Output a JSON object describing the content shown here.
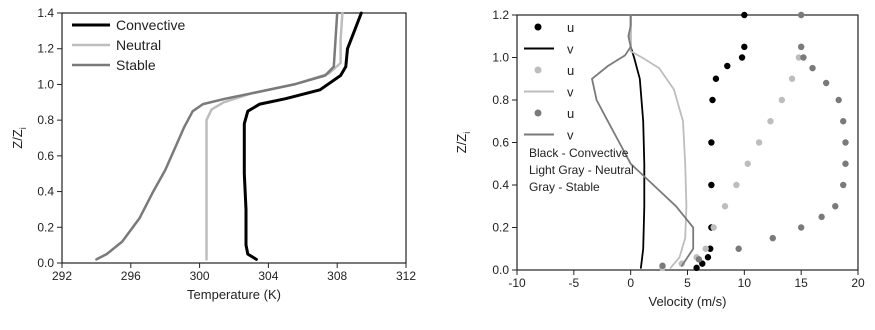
{
  "chart_data": [
    {
      "type": "line",
      "title": "",
      "xlabel": "Temperature (K)",
      "ylabel": "Z/Z",
      "ylabel_sub": "i",
      "xlim": [
        292,
        312
      ],
      "ylim": [
        0.0,
        1.4
      ],
      "xticks": [
        "292",
        "296",
        "300",
        "304",
        "308",
        "312"
      ],
      "yticks": [
        "0.0",
        "0.2",
        "0.4",
        "0.6",
        "0.8",
        "1.0",
        "1.2",
        "1.4"
      ],
      "grid": false,
      "legend_position": "top-left",
      "series": [
        {
          "name": "Convective",
          "color": "#000000",
          "width": 3,
          "points": [
            [
              303.3,
              0.02
            ],
            [
              302.8,
              0.05
            ],
            [
              302.7,
              0.1
            ],
            [
              302.7,
              0.3
            ],
            [
              302.6,
              0.5
            ],
            [
              302.6,
              0.7
            ],
            [
              302.6,
              0.78
            ],
            [
              302.8,
              0.85
            ],
            [
              303.5,
              0.89
            ],
            [
              305.0,
              0.92
            ],
            [
              307.0,
              0.97
            ],
            [
              308.2,
              1.05
            ],
            [
              308.5,
              1.1
            ],
            [
              308.6,
              1.2
            ],
            [
              309.0,
              1.3
            ],
            [
              309.4,
              1.4
            ]
          ]
        },
        {
          "name": "Neutral",
          "color": "#bdbdbd",
          "width": 2.5,
          "points": [
            [
              300.4,
              0.02
            ],
            [
              300.4,
              0.2
            ],
            [
              300.4,
              0.4
            ],
            [
              300.4,
              0.6
            ],
            [
              300.4,
              0.8
            ],
            [
              300.7,
              0.86
            ],
            [
              301.4,
              0.9
            ],
            [
              303.0,
              0.95
            ],
            [
              305.5,
              1.0
            ],
            [
              307.5,
              1.06
            ],
            [
              308.2,
              1.12
            ],
            [
              308.2,
              1.25
            ],
            [
              308.3,
              1.4
            ]
          ]
        },
        {
          "name": "Stable",
          "color": "#7a7a7a",
          "width": 2.5,
          "points": [
            [
              294.0,
              0.02
            ],
            [
              294.6,
              0.05
            ],
            [
              295.5,
              0.12
            ],
            [
              296.5,
              0.25
            ],
            [
              297.3,
              0.4
            ],
            [
              298.0,
              0.52
            ],
            [
              298.6,
              0.65
            ],
            [
              299.1,
              0.76
            ],
            [
              299.6,
              0.85
            ],
            [
              300.2,
              0.89
            ],
            [
              301.5,
              0.92
            ],
            [
              303.5,
              0.96
            ],
            [
              305.5,
              1.0
            ],
            [
              307.3,
              1.05
            ],
            [
              307.8,
              1.1
            ],
            [
              307.9,
              1.25
            ],
            [
              308.0,
              1.4
            ]
          ]
        }
      ]
    },
    {
      "type": "line",
      "title": "",
      "xlabel": "Velocity (m/s)",
      "ylabel": "Z/Z",
      "ylabel_sub": "i",
      "xlim": [
        -10,
        20
      ],
      "ylim": [
        0.0,
        1.2
      ],
      "xticks": [
        "-10",
        "-5",
        "0",
        "5",
        "10",
        "15",
        "20"
      ],
      "yticks": [
        "0.0",
        "0.2",
        "0.4",
        "0.6",
        "0.8",
        "1.0",
        "1.2"
      ],
      "grid": false,
      "legend_position": "top-left",
      "legend": [
        {
          "label": "u",
          "kind": "dot",
          "color": "#000000"
        },
        {
          "label": "v",
          "kind": "line",
          "color": "#000000"
        },
        {
          "label": "u",
          "kind": "dot",
          "color": "#bdbdbd"
        },
        {
          "label": "v",
          "kind": "line",
          "color": "#bdbdbd"
        },
        {
          "label": "u",
          "kind": "dot",
          "color": "#7a7a7a"
        },
        {
          "label": "v",
          "kind": "line",
          "color": "#7a7a7a"
        }
      ],
      "annotation": [
        "Black - Convective",
        "Light Gray - Neutral",
        "Gray - Stable"
      ],
      "series": [
        {
          "name": "u",
          "kind": "dot",
          "color": "#000000",
          "points": [
            [
              5.8,
              0.01
            ],
            [
              6.3,
              0.03
            ],
            [
              6.8,
              0.06
            ],
            [
              7.0,
              0.1
            ],
            [
              7.1,
              0.2
            ],
            [
              7.1,
              0.4
            ],
            [
              7.1,
              0.6
            ],
            [
              7.2,
              0.8
            ],
            [
              7.5,
              0.9
            ],
            [
              8.5,
              0.96
            ],
            [
              9.8,
              1.0
            ],
            [
              10.0,
              1.05
            ],
            [
              10.0,
              1.2
            ]
          ]
        },
        {
          "name": "v",
          "kind": "line",
          "color": "#000000",
          "points": [
            [
              0.9,
              0.01
            ],
            [
              1.1,
              0.1
            ],
            [
              1.2,
              0.3
            ],
            [
              1.2,
              0.5
            ],
            [
              1.1,
              0.7
            ],
            [
              0.8,
              0.9
            ],
            [
              0.3,
              1.0
            ],
            [
              0.0,
              1.05
            ],
            [
              0.0,
              1.2
            ]
          ]
        },
        {
          "name": "u",
          "kind": "dot",
          "color": "#bdbdbd",
          "points": [
            [
              2.8,
              0.01
            ],
            [
              4.5,
              0.03
            ],
            [
              5.8,
              0.06
            ],
            [
              6.6,
              0.1
            ],
            [
              7.3,
              0.2
            ],
            [
              8.3,
              0.3
            ],
            [
              9.3,
              0.4
            ],
            [
              10.3,
              0.5
            ],
            [
              11.3,
              0.6
            ],
            [
              12.3,
              0.7
            ],
            [
              13.3,
              0.8
            ],
            [
              14.2,
              0.9
            ],
            [
              14.8,
              1.0
            ],
            [
              15.0,
              1.05
            ],
            [
              15.0,
              1.2
            ]
          ]
        },
        {
          "name": "v",
          "kind": "line",
          "color": "#bdbdbd",
          "points": [
            [
              3.5,
              0.01
            ],
            [
              4.3,
              0.06
            ],
            [
              4.8,
              0.15
            ],
            [
              4.9,
              0.3
            ],
            [
              4.8,
              0.5
            ],
            [
              4.6,
              0.7
            ],
            [
              3.8,
              0.85
            ],
            [
              2.5,
              0.95
            ],
            [
              1.0,
              1.0
            ],
            [
              0.0,
              1.03
            ],
            [
              0.0,
              1.2
            ]
          ]
        },
        {
          "name": "u",
          "kind": "dot",
          "color": "#7a7a7a",
          "points": [
            [
              2.8,
              0.02
            ],
            [
              6.0,
              0.05
            ],
            [
              9.5,
              0.1
            ],
            [
              12.5,
              0.15
            ],
            [
              15.0,
              0.2
            ],
            [
              16.8,
              0.25
            ],
            [
              18.0,
              0.3
            ],
            [
              18.7,
              0.4
            ],
            [
              18.9,
              0.5
            ],
            [
              18.9,
              0.6
            ],
            [
              18.7,
              0.7
            ],
            [
              18.3,
              0.8
            ],
            [
              17.2,
              0.88
            ],
            [
              16.0,
              0.95
            ],
            [
              15.2,
              1.0
            ],
            [
              15.0,
              1.05
            ],
            [
              15.0,
              1.2
            ]
          ]
        },
        {
          "name": "v",
          "kind": "line",
          "color": "#7a7a7a",
          "points": [
            [
              4.5,
              0.02
            ],
            [
              5.5,
              0.1
            ],
            [
              5.5,
              0.2
            ],
            [
              4.0,
              0.3
            ],
            [
              2.0,
              0.4
            ],
            [
              0.0,
              0.5
            ],
            [
              -1.0,
              0.6
            ],
            [
              -2.0,
              0.7
            ],
            [
              -3.0,
              0.8
            ],
            [
              -3.4,
              0.9
            ],
            [
              -2.0,
              0.96
            ],
            [
              -0.5,
              1.01
            ],
            [
              0.0,
              1.05
            ],
            [
              -0.2,
              1.1
            ],
            [
              0.0,
              1.15
            ],
            [
              0.0,
              1.2
            ]
          ]
        }
      ]
    }
  ]
}
